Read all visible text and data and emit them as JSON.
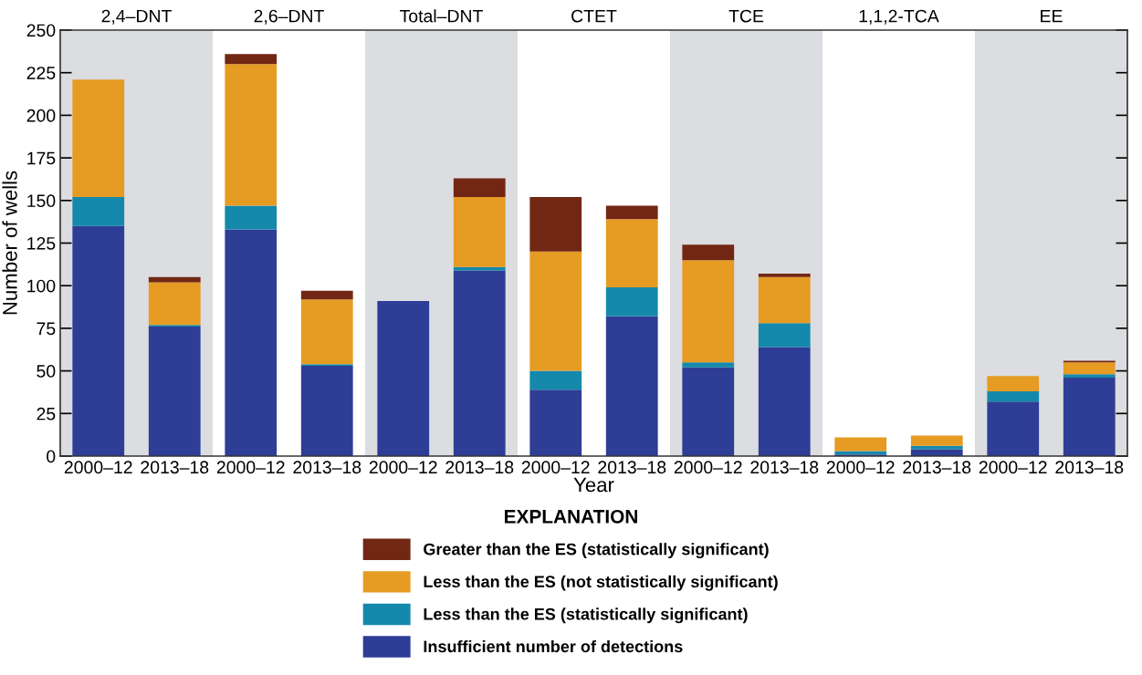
{
  "chart_data": {
    "type": "bar",
    "stacked": true,
    "xlabel": "Year",
    "ylabel": "Number of wells",
    "categories": [
      "2000–12",
      "2013–18",
      "2000–12",
      "2013–18",
      "2000–12",
      "2013–18",
      "2000–12",
      "2013–18",
      "2000–12",
      "2013–18",
      "2000–12",
      "2013–18",
      "2000–12",
      "2013–18"
    ],
    "series": [
      {
        "name": "Insufficient number of detections",
        "color": "#2e3d96",
        "values": [
          135,
          76,
          133,
          53,
          91,
          109,
          39,
          82,
          52,
          64,
          1,
          4,
          32,
          46
        ]
      },
      {
        "name": "Less than the ES (statistically significant)",
        "color": "#1589ab",
        "values": [
          17,
          1,
          14,
          1,
          0,
          2,
          11,
          17,
          3,
          14,
          2,
          2,
          6,
          2
        ]
      },
      {
        "name": "Less than the ES (not statistically significant)",
        "color": "#e69b23",
        "values": [
          69,
          25,
          83,
          38,
          0,
          41,
          70,
          40,
          60,
          27,
          8,
          6,
          9,
          7
        ]
      },
      {
        "name": "Greater than the ES (statistically significant)",
        "color": "#722714",
        "values": [
          0,
          3,
          6,
          5,
          0,
          11,
          32,
          8,
          9,
          2,
          0,
          0,
          0,
          1
        ]
      }
    ],
    "ylim": [
      0,
      250
    ],
    "yticks": [
      0,
      25,
      50,
      75,
      100,
      125,
      150,
      175,
      200,
      225,
      250
    ],
    "annotations": [
      "2,4–DNT",
      "2,6–DNT",
      "Total–DNT",
      "CTET",
      "TCE",
      "1,1,2-TCA",
      "EE"
    ],
    "legend": "bottom",
    "legend_title": "EXPLANATION",
    "grid": false
  }
}
